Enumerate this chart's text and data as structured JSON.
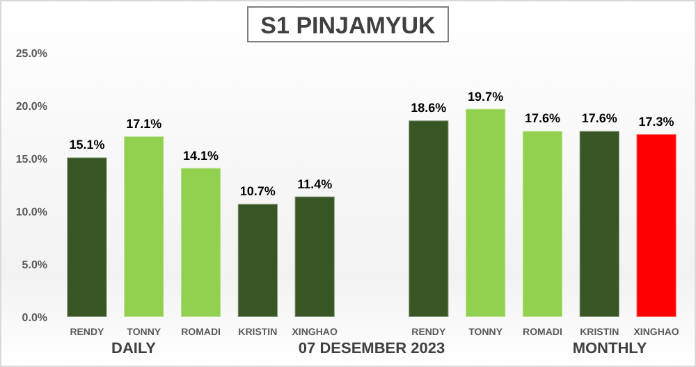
{
  "chart_data": {
    "type": "bar",
    "title": "S1 PINJAMYUK",
    "categories": [
      "RENDY",
      "TONNY",
      "ROMADI",
      "KRISTIN",
      "XINGHAO",
      null,
      "RENDY",
      "TONNY",
      "ROMADI",
      "KRISTIN",
      "XINGHAO"
    ],
    "values": [
      15.1,
      17.1,
      14.1,
      10.7,
      11.4,
      null,
      18.6,
      19.7,
      17.6,
      17.6,
      17.3
    ],
    "colors": [
      "#375623",
      "#92d050",
      "#92d050",
      "#375623",
      "#375623",
      null,
      "#375623",
      "#92d050",
      "#92d050",
      "#375623",
      "#ff0000"
    ],
    "value_labels": [
      "15.1%",
      "17.1%",
      "14.1%",
      "10.7%",
      "11.4%",
      null,
      "18.6%",
      "19.7%",
      "17.6%",
      "17.6%",
      "17.3%"
    ],
    "ylim": [
      0,
      25
    ],
    "yticks": [
      {
        "value": 0,
        "label": "0.0%"
      },
      {
        "value": 5,
        "label": "5.0%"
      },
      {
        "value": 10,
        "label": "10.0%"
      },
      {
        "value": 15,
        "label": "15.0%"
      },
      {
        "value": 20,
        "label": "20.0%"
      },
      {
        "value": 25,
        "label": "25.0%"
      }
    ],
    "annotations": [
      "DAILY",
      "07 DESEMBER 2023",
      "MONTHLY"
    ],
    "grid": false
  }
}
